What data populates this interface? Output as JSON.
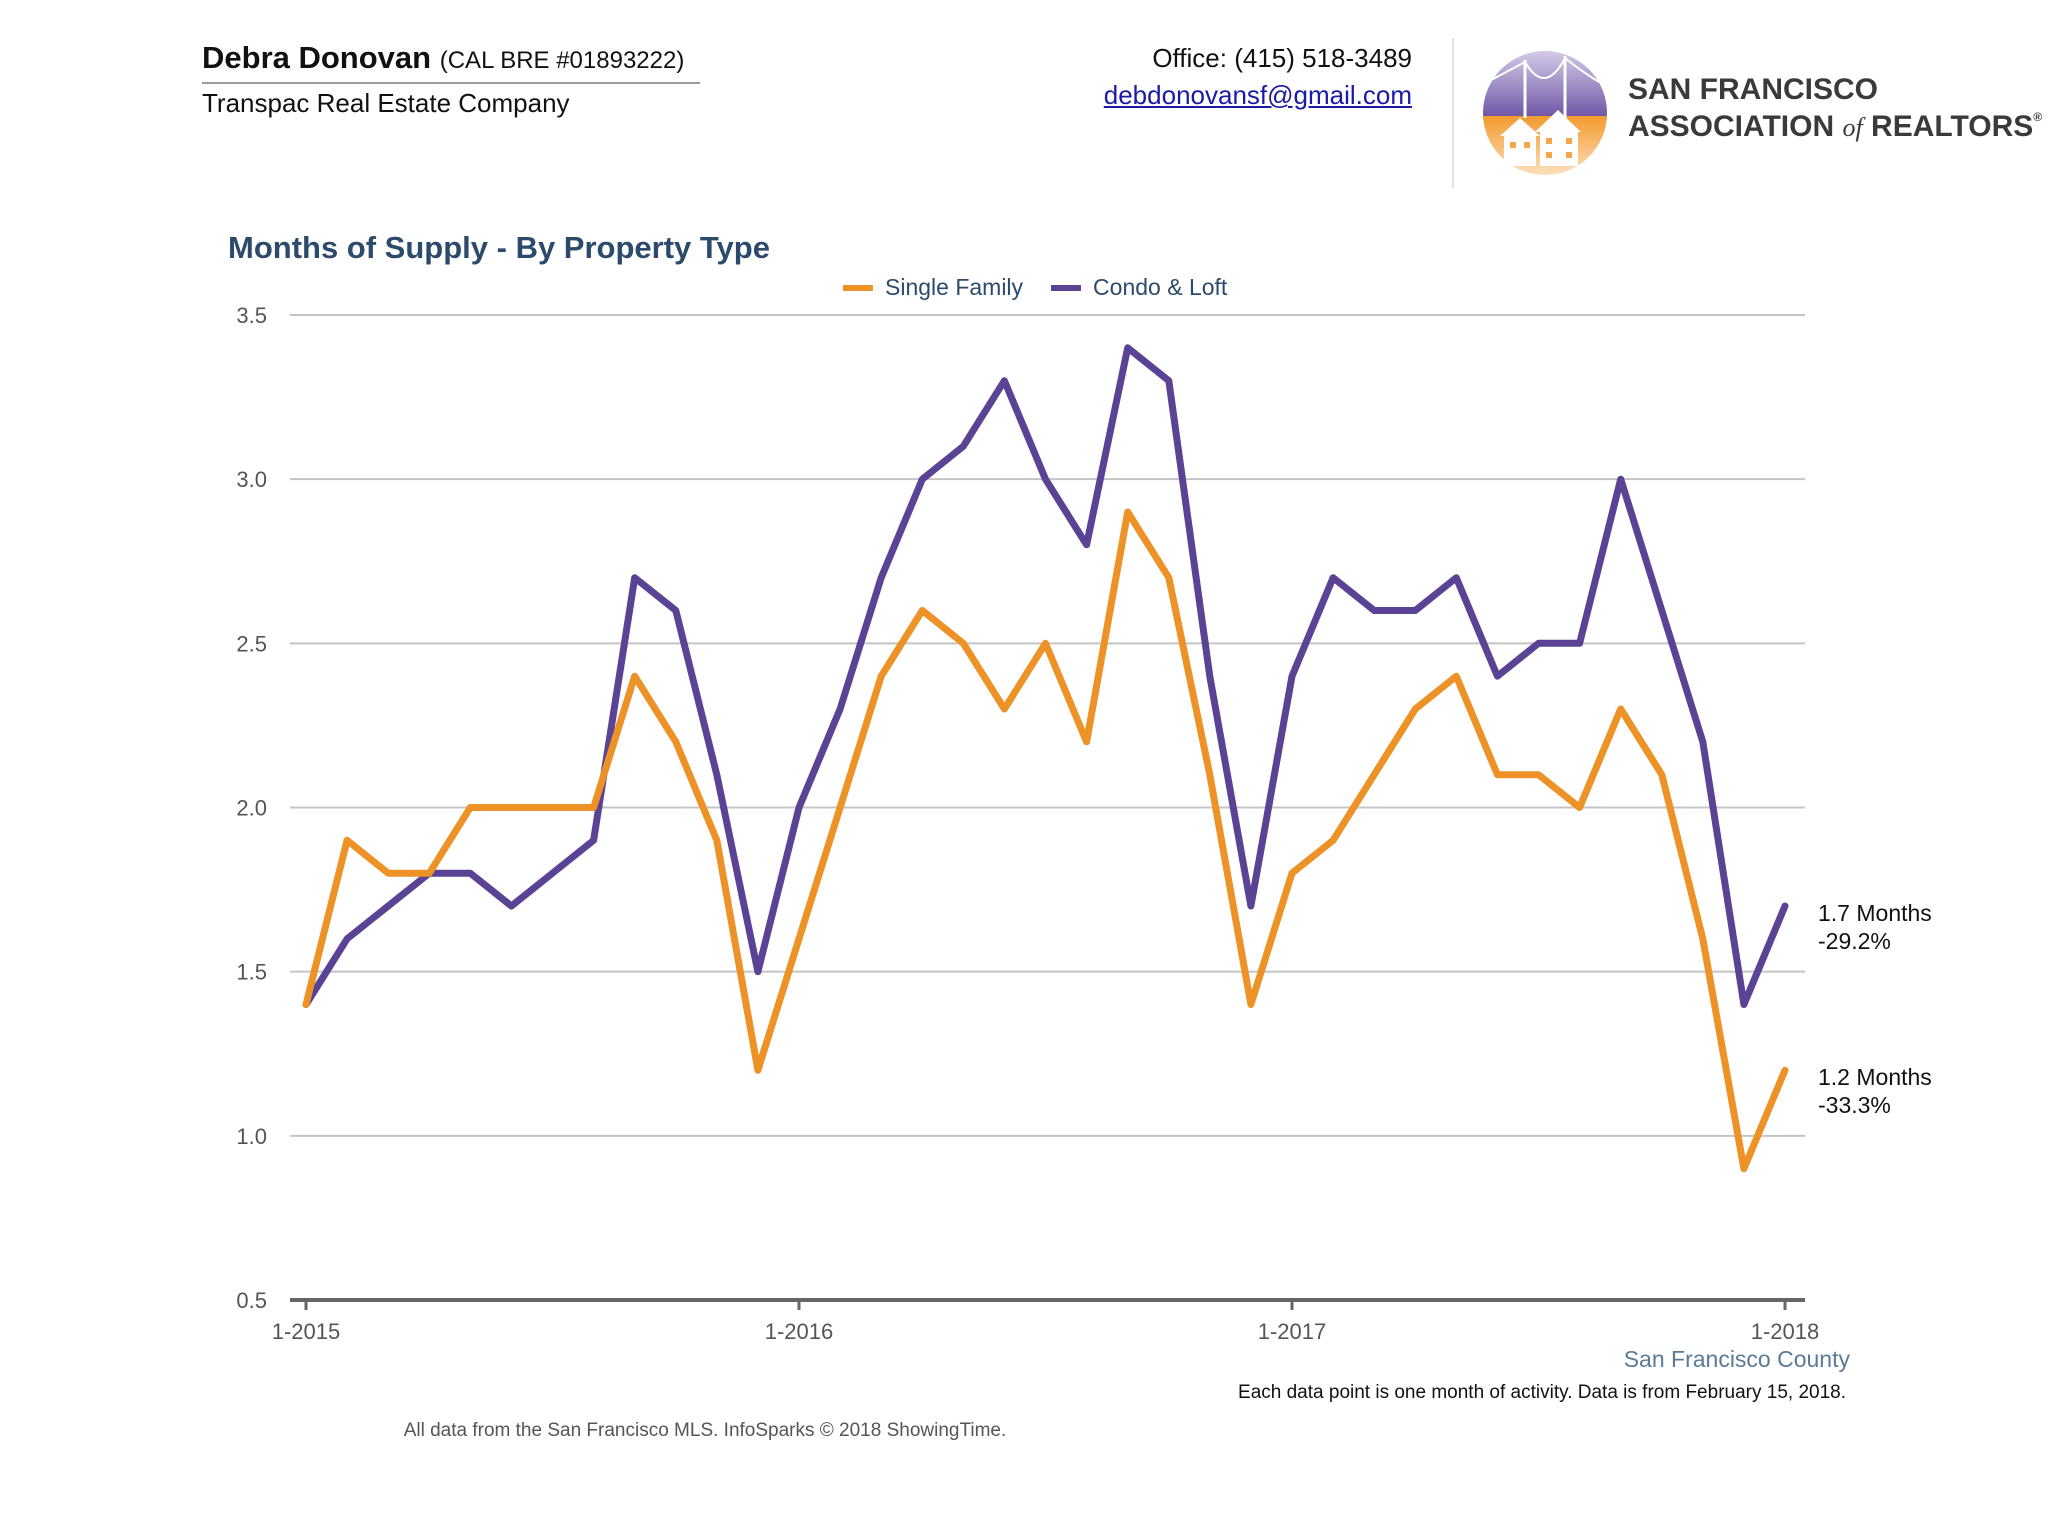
{
  "header": {
    "agent_name": "Debra Donovan",
    "agent_license": "(CAL BRE #01893222)",
    "company": "Transpac Real Estate Company",
    "office": "Office: (415) 518-3489",
    "email": "debdonovansf@gmail.com",
    "org_line1": "SAN FRANCISCO",
    "org_line2_a": "ASSOCIATION",
    "org_line2_of": "of",
    "org_line2_b": "REALTORS",
    "org_reg": "®"
  },
  "chart_data": {
    "type": "line",
    "title": "Months of Supply - By Property Type",
    "xlabel": "",
    "ylabel": "",
    "ylim": [
      0.5,
      3.5
    ],
    "yticks": [
      "3.5",
      "3.0",
      "2.5",
      "2.0",
      "1.5",
      "1.0",
      "0.5"
    ],
    "ytick_values": [
      3.5,
      3.0,
      2.5,
      2.0,
      1.5,
      1.0,
      0.5
    ],
    "grid": true,
    "legend_position": "top-center",
    "x": [
      "1-2015",
      "2-2015",
      "3-2015",
      "4-2015",
      "5-2015",
      "6-2015",
      "7-2015",
      "8-2015",
      "9-2015",
      "10-2015",
      "11-2015",
      "12-2015",
      "1-2016",
      "2-2016",
      "3-2016",
      "4-2016",
      "5-2016",
      "6-2016",
      "7-2016",
      "8-2016",
      "9-2016",
      "10-2016",
      "11-2016",
      "12-2016",
      "1-2017",
      "2-2017",
      "3-2017",
      "4-2017",
      "5-2017",
      "6-2017",
      "7-2017",
      "8-2017",
      "9-2017",
      "10-2017",
      "11-2017",
      "12-2017",
      "1-2018"
    ],
    "xtick_labels": [
      "1-2015",
      "1-2016",
      "1-2017",
      "1-2018"
    ],
    "xtick_indices": [
      0,
      12,
      24,
      36
    ],
    "series": [
      {
        "name": "Single Family",
        "color": "#ec9227",
        "values": [
          1.4,
          1.9,
          1.8,
          1.8,
          2.0,
          2.0,
          2.0,
          2.0,
          2.4,
          2.2,
          1.9,
          1.2,
          1.6,
          2.0,
          2.4,
          2.6,
          2.5,
          2.3,
          2.5,
          2.2,
          2.9,
          2.7,
          2.1,
          1.4,
          1.8,
          1.9,
          2.1,
          2.3,
          2.4,
          2.1,
          2.1,
          2.0,
          2.3,
          2.1,
          1.6,
          0.9,
          1.2
        ],
        "end_label_value": "1.2 Months",
        "end_label_change": "-33.3%"
      },
      {
        "name": "Condo & Loft",
        "color": "#5a4394",
        "values": [
          1.4,
          1.6,
          1.7,
          1.8,
          1.8,
          1.7,
          1.8,
          1.9,
          2.7,
          2.6,
          2.1,
          1.5,
          2.0,
          2.3,
          2.7,
          3.0,
          3.1,
          3.3,
          3.0,
          2.8,
          3.4,
          3.3,
          2.4,
          1.7,
          2.4,
          2.7,
          2.6,
          2.6,
          2.7,
          2.4,
          2.5,
          2.5,
          3.0,
          2.6,
          2.2,
          1.4,
          1.7
        ],
        "end_label_value": "1.7 Months",
        "end_label_change": "-29.2%"
      }
    ]
  },
  "footer": {
    "county": "San Francisco County",
    "note": "Each data point is one month of activity. Data is from February 15, 2018.",
    "source": "All data from the San Francisco MLS. InfoSparks © 2018 ShowingTime."
  }
}
